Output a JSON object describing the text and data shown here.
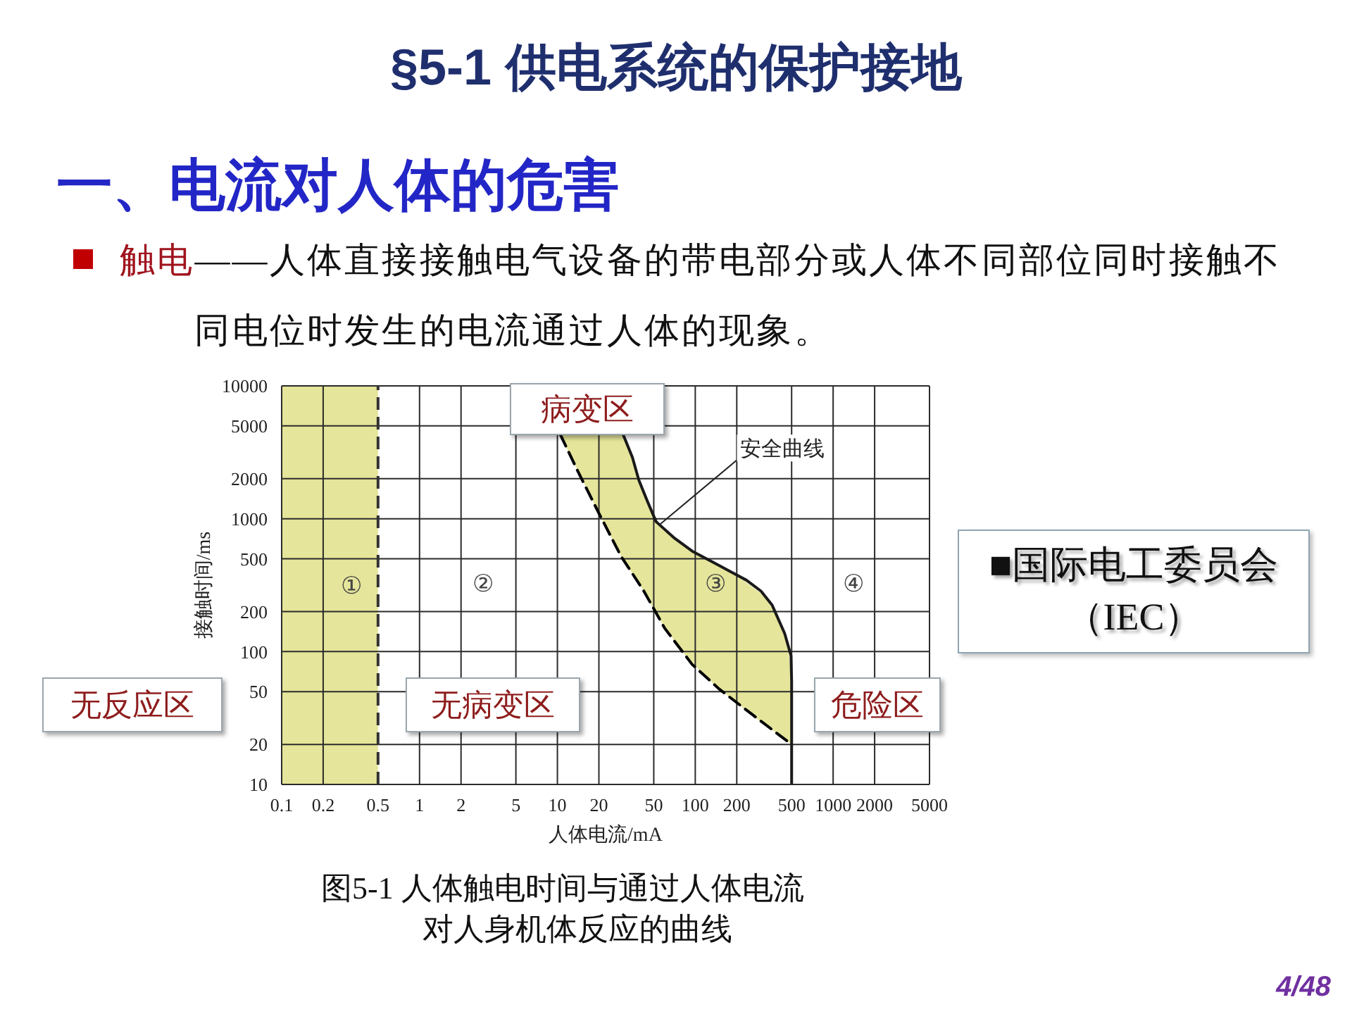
{
  "chart_data": {
    "type": "line",
    "title": "§5-1 供电系统的保护接地",
    "subtitle": "一、电流对人体的危害",
    "xlabel": "人体电流/mA",
    "ylabel": "接触时间/ms",
    "annotations": [
      "触电",
      "——人体直接接触电气设备的带电部分或人体不同部位同时接触不同电位时发生的电流通过人体的现象。",
      "病变区",
      "无反应区",
      "无病变区",
      "危险区",
      "■国际电工委员会（IEC）",
      "图5-1 人体触电时间与通过人体电流对人身机体反应的曲线",
      "4/48",
      "②",
      "③",
      "④",
      {
        "text": "安全曲线",
        "x": 55,
        "y": 900
      }
    ],
    "series": [
      {
        "type": "area",
        "color": "#e5e59b",
        "x": [
          10.5,
          12,
          17,
          24,
          30,
          37,
          41,
          48,
          56,
          80,
          120,
          200,
          320,
          400,
          470,
          500
        ],
        "values": [
          null,
          null,
          null,
          null,
          null,
          null,
          null,
          null,
          null,
          null,
          null,
          null,
          null,
          null,
          null,
          null
        ],
        "lower": [
          4300,
          3200,
          1550,
          760,
          490,
          355,
          300,
          225,
          170,
          100,
          64,
          41,
          28,
          24,
          21,
          20
        ],
        "upper": [
          4300,
          4300,
          4300,
          4300,
          4300,
          2350,
          1700,
          1150,
          890,
          650,
          500,
          375,
          260,
          175,
          112,
          60
        ]
      },
      {
        "color": "#000000",
        "line_style": "dashed",
        "x": [
          10.5,
          14,
          20,
          29,
          42,
          60,
          95,
          150,
          265,
          500
        ],
        "values": [
          4300,
          2300,
          1100,
          520,
          290,
          150,
          80,
          52,
          33,
          20
        ]
      },
      {
        "color": "#1a1a1a",
        "line_style": "solid",
        "x": [
          30,
          35,
          39,
          45,
          52,
          70,
          95,
          140,
          180,
          235,
          300,
          360,
          445,
          495,
          500,
          500
        ],
        "values": [
          4300,
          2900,
          1950,
          1350,
          950,
          720,
          570,
          460,
          400,
          345,
          285,
          225,
          137,
          93,
          60,
          10
        ]
      }
    ],
    "xlim": [
      0.1,
      5000
    ],
    "ylim": [
      10,
      10000
    ],
    "xticks": [
      0.1,
      0.2,
      0.5,
      1,
      2,
      5,
      10,
      20,
      50,
      100,
      200,
      500,
      1000,
      2000,
      5000
    ],
    "yticks": [
      10,
      20,
      50,
      100,
      200,
      500,
      1000,
      2000,
      5000,
      10000
    ],
    "log": "xy",
    "grid": true,
    "bands": [
      {
        "axis": "x",
        "from": 0.1,
        "to": 0.5,
        "label": "①",
        "color": "#e5e59b"
      }
    ],
    "ref_lines": [
      {
        "axis": "x",
        "value": 0.5,
        "line_style": "dashed",
        "color": "#333333"
      }
    ]
  }
}
